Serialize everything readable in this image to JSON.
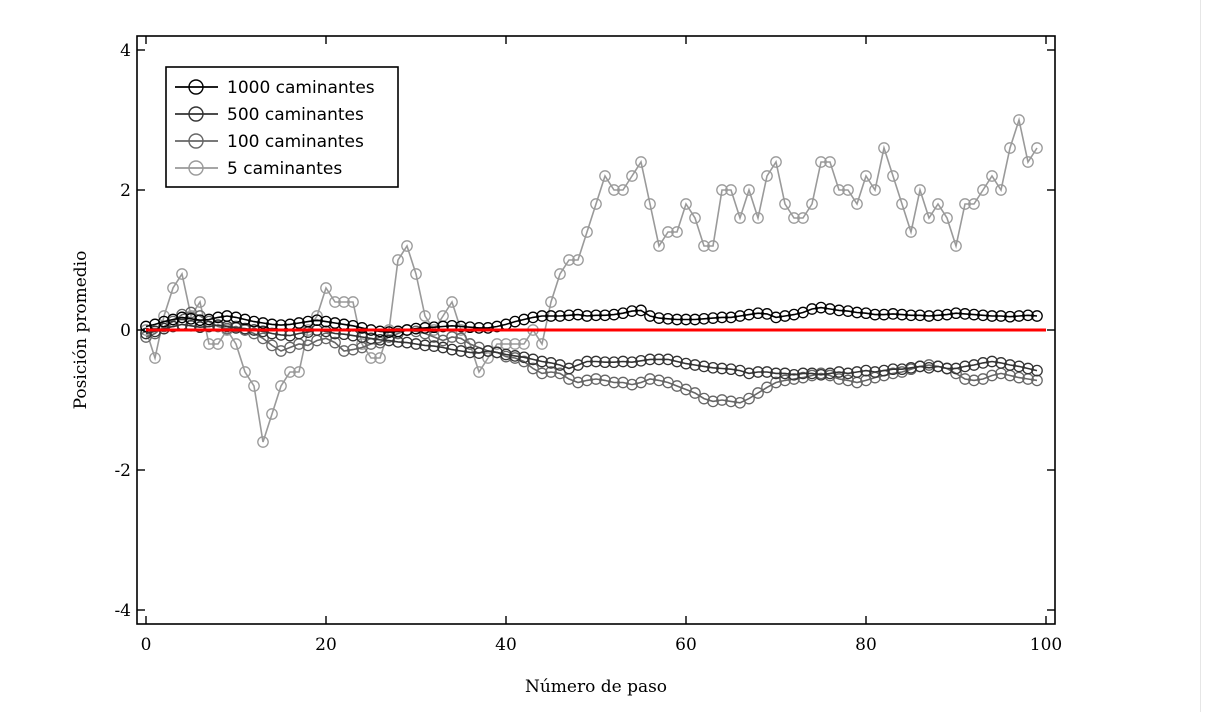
{
  "chart_data": {
    "type": "line",
    "title": "",
    "xlabel": "Número de paso",
    "ylabel": "Posición promedio",
    "xlim": [
      -1,
      101
    ],
    "ylim": [
      -4.2,
      4.2
    ],
    "xticks": [
      0,
      20,
      40,
      60,
      80,
      100
    ],
    "yticks": [
      -4,
      -2,
      0,
      2,
      4
    ],
    "grid": false,
    "legend_position": "top-left",
    "reference_line": {
      "y": 0,
      "color": "#ff0000"
    },
    "series": [
      {
        "name": "1000 caminantes",
        "color": "#000000",
        "marker": "circle-open",
        "values": [
          0.05,
          0.08,
          0.12,
          0.15,
          0.18,
          0.16,
          0.14,
          0.15,
          0.18,
          0.2,
          0.18,
          0.15,
          0.12,
          0.1,
          0.08,
          0.07,
          0.08,
          0.1,
          0.12,
          0.14,
          0.12,
          0.1,
          0.08,
          0.06,
          0.03,
          0.0,
          -0.02,
          -0.03,
          -0.02,
          0.0,
          0.02,
          0.03,
          0.04,
          0.05,
          0.06,
          0.05,
          0.04,
          0.03,
          0.03,
          0.05,
          0.08,
          0.12,
          0.15,
          0.18,
          0.2,
          0.2,
          0.2,
          0.21,
          0.22,
          0.2,
          0.21,
          0.21,
          0.22,
          0.24,
          0.27,
          0.28,
          0.2,
          0.17,
          0.16,
          0.15,
          0.15,
          0.15,
          0.16,
          0.17,
          0.18,
          0.18,
          0.2,
          0.22,
          0.24,
          0.23,
          0.18,
          0.2,
          0.22,
          0.25,
          0.3,
          0.32,
          0.3,
          0.28,
          0.27,
          0.25,
          0.24,
          0.22,
          0.22,
          0.23,
          0.22,
          0.21,
          0.21,
          0.2,
          0.21,
          0.22,
          0.24,
          0.23,
          0.22,
          0.21,
          0.2,
          0.2,
          0.19,
          0.2,
          0.21,
          0.2
        ]
      },
      {
        "name": "500 caminantes",
        "color": "#333333",
        "marker": "circle-open",
        "values": [
          -0.05,
          -0.02,
          0.02,
          0.05,
          0.08,
          0.06,
          0.04,
          0.05,
          0.07,
          0.05,
          0.03,
          0.02,
          0.0,
          -0.02,
          -0.05,
          -0.07,
          -0.08,
          -0.05,
          -0.03,
          0.0,
          -0.02,
          -0.05,
          -0.06,
          -0.08,
          -0.1,
          -0.12,
          -0.14,
          -0.15,
          -0.17,
          -0.18,
          -0.2,
          -0.22,
          -0.23,
          -0.25,
          -0.28,
          -0.3,
          -0.32,
          -0.33,
          -0.3,
          -0.32,
          -0.35,
          -0.37,
          -0.39,
          -0.42,
          -0.45,
          -0.47,
          -0.5,
          -0.55,
          -0.5,
          -0.45,
          -0.45,
          -0.46,
          -0.46,
          -0.45,
          -0.46,
          -0.44,
          -0.42,
          -0.42,
          -0.42,
          -0.45,
          -0.48,
          -0.5,
          -0.52,
          -0.54,
          -0.55,
          -0.56,
          -0.58,
          -0.62,
          -0.6,
          -0.6,
          -0.62,
          -0.62,
          -0.64,
          -0.62,
          -0.62,
          -0.64,
          -0.62,
          -0.6,
          -0.62,
          -0.6,
          -0.58,
          -0.6,
          -0.58,
          -0.56,
          -0.56,
          -0.54,
          -0.52,
          -0.54,
          -0.52,
          -0.55,
          -0.55,
          -0.52,
          -0.5,
          -0.47,
          -0.45,
          -0.47,
          -0.5,
          -0.52,
          -0.55,
          -0.58
        ]
      },
      {
        "name": "100 caminantes",
        "color": "#666666",
        "marker": "circle-open",
        "values": [
          -0.1,
          -0.05,
          0.05,
          0.12,
          0.22,
          0.25,
          0.2,
          0.12,
          0.05,
          0.02,
          0.05,
          0.0,
          -0.05,
          -0.12,
          -0.22,
          -0.3,
          -0.25,
          -0.2,
          -0.22,
          -0.15,
          -0.12,
          -0.18,
          -0.3,
          -0.28,
          -0.25,
          -0.2,
          -0.18,
          -0.1,
          -0.05,
          0.0,
          -0.02,
          -0.05,
          -0.1,
          -0.15,
          -0.1,
          -0.12,
          -0.2,
          -0.25,
          -0.3,
          -0.32,
          -0.38,
          -0.4,
          -0.45,
          -0.55,
          -0.62,
          -0.6,
          -0.62,
          -0.7,
          -0.75,
          -0.72,
          -0.7,
          -0.72,
          -0.75,
          -0.75,
          -0.78,
          -0.75,
          -0.7,
          -0.72,
          -0.75,
          -0.8,
          -0.85,
          -0.9,
          -0.98,
          -1.02,
          -1.0,
          -1.02,
          -1.04,
          -0.98,
          -0.9,
          -0.82,
          -0.75,
          -0.72,
          -0.7,
          -0.68,
          -0.65,
          -0.62,
          -0.65,
          -0.7,
          -0.72,
          -0.75,
          -0.72,
          -0.68,
          -0.65,
          -0.62,
          -0.6,
          -0.56,
          -0.52,
          -0.5,
          -0.52,
          -0.55,
          -0.62,
          -0.7,
          -0.72,
          -0.7,
          -0.65,
          -0.62,
          -0.65,
          -0.68,
          -0.7,
          -0.72
        ]
      },
      {
        "name": "5 caminantes",
        "color": "#9a9a9a",
        "marker": "circle-open",
        "values": [
          0.0,
          -0.4,
          0.2,
          0.6,
          0.8,
          0.2,
          0.4,
          -0.2,
          -0.2,
          0.0,
          -0.2,
          -0.6,
          -0.8,
          -1.6,
          -1.2,
          -0.8,
          -0.6,
          -0.6,
          0.0,
          0.2,
          0.6,
          0.4,
          0.4,
          0.4,
          -0.2,
          -0.4,
          -0.4,
          0.0,
          1.0,
          1.2,
          0.8,
          0.2,
          0.0,
          0.2,
          0.4,
          0.0,
          -0.2,
          -0.6,
          -0.4,
          -0.2,
          -0.2,
          -0.2,
          -0.2,
          0.0,
          -0.2,
          0.4,
          0.8,
          1.0,
          1.0,
          1.4,
          1.8,
          2.2,
          2.0,
          2.0,
          2.2,
          2.4,
          1.8,
          1.2,
          1.4,
          1.4,
          1.8,
          1.6,
          1.2,
          1.2,
          2.0,
          2.0,
          1.6,
          2.0,
          1.6,
          2.2,
          2.4,
          1.8,
          1.6,
          1.6,
          1.8,
          2.4,
          2.4,
          2.0,
          2.0,
          1.8,
          2.2,
          2.0,
          2.6,
          2.2,
          1.8,
          1.4,
          2.0,
          1.6,
          1.8,
          1.6,
          1.2,
          1.8,
          1.8,
          2.0,
          2.2,
          2.0,
          2.6,
          3.0,
          2.4,
          2.6
        ]
      }
    ]
  }
}
